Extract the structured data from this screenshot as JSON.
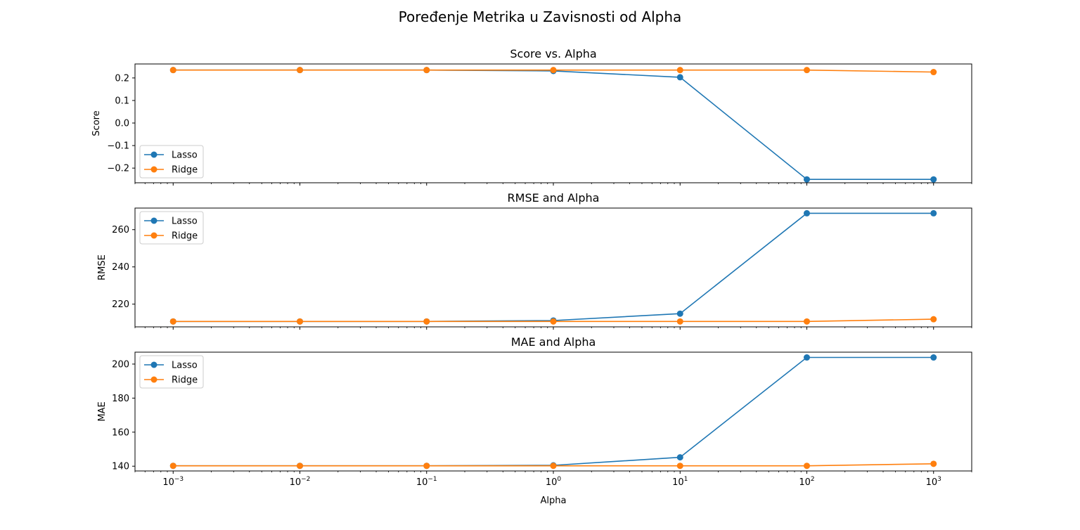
{
  "figure": {
    "title": "Poređenje Metrika u Zavisnosti od Alpha"
  },
  "colors": {
    "lasso": "#1f77b4",
    "ridge": "#ff7f0e",
    "axes": "#000000",
    "background": "#ffffff"
  },
  "chart_data": [
    {
      "type": "line",
      "title": "Score vs. Alpha",
      "xlabel": "",
      "ylabel": "Score",
      "xscale": "log",
      "x": [
        0.001,
        0.01,
        0.1,
        1,
        10,
        100,
        1000
      ],
      "xlim": [
        0.0005,
        2000
      ],
      "ylim": [
        -0.265,
        0.262
      ],
      "yticks": [
        -0.2,
        -0.1,
        0.0,
        0.1,
        0.2
      ],
      "ytick_labels": [
        "−0.2",
        "−0.1",
        "0.0",
        "0.1",
        "0.2"
      ],
      "legend": "lower-left",
      "grid": false,
      "series": [
        {
          "name": "Lasso",
          "color": "#1f77b4",
          "marker": "circle",
          "values": [
            0.235,
            0.235,
            0.235,
            0.231,
            0.203,
            -0.25,
            -0.25
          ]
        },
        {
          "name": "Ridge",
          "color": "#ff7f0e",
          "marker": "circle",
          "values": [
            0.235,
            0.235,
            0.235,
            0.235,
            0.235,
            0.235,
            0.226
          ]
        }
      ]
    },
    {
      "type": "line",
      "title": "RMSE and Alpha",
      "xlabel": "",
      "ylabel": "RMSE",
      "xscale": "log",
      "x": [
        0.001,
        0.01,
        0.1,
        1,
        10,
        100,
        1000
      ],
      "xlim": [
        0.0005,
        2000
      ],
      "ylim": [
        207.8,
        271.6
      ],
      "yticks": [
        220,
        240,
        260
      ],
      "ytick_labels": [
        "220",
        "240",
        "260"
      ],
      "legend": "upper-left",
      "grid": false,
      "series": [
        {
          "name": "Lasso",
          "color": "#1f77b4",
          "marker": "circle",
          "values": [
            210.7,
            210.7,
            210.7,
            211.2,
            214.9,
            268.8,
            268.8
          ]
        },
        {
          "name": "Ridge",
          "color": "#ff7f0e",
          "marker": "circle",
          "values": [
            210.7,
            210.7,
            210.7,
            210.7,
            210.7,
            210.7,
            211.9
          ]
        }
      ]
    },
    {
      "type": "line",
      "title": "MAE and Alpha",
      "xlabel": "Alpha",
      "ylabel": "MAE",
      "xscale": "log",
      "x": [
        0.001,
        0.01,
        0.1,
        1,
        10,
        100,
        1000
      ],
      "xlim": [
        0.0005,
        2000
      ],
      "ylim": [
        137.2,
        207.0
      ],
      "yticks": [
        140,
        160,
        180,
        200
      ],
      "ytick_labels": [
        "140",
        "160",
        "180",
        "200"
      ],
      "xtick_labels": [
        {
          "base": "10",
          "exp": "−3"
        },
        {
          "base": "10",
          "exp": "−2"
        },
        {
          "base": "10",
          "exp": "−1"
        },
        {
          "base": "10",
          "exp": "0"
        },
        {
          "base": "10",
          "exp": "1"
        },
        {
          "base": "10",
          "exp": "2"
        },
        {
          "base": "10",
          "exp": "3"
        }
      ],
      "legend": "upper-left",
      "grid": false,
      "series": [
        {
          "name": "Lasso",
          "color": "#1f77b4",
          "marker": "circle",
          "values": [
            140.2,
            140.2,
            140.2,
            140.5,
            145.2,
            203.9,
            203.9
          ]
        },
        {
          "name": "Ridge",
          "color": "#ff7f0e",
          "marker": "circle",
          "values": [
            140.2,
            140.2,
            140.2,
            140.2,
            140.2,
            140.2,
            141.4
          ]
        }
      ]
    }
  ]
}
